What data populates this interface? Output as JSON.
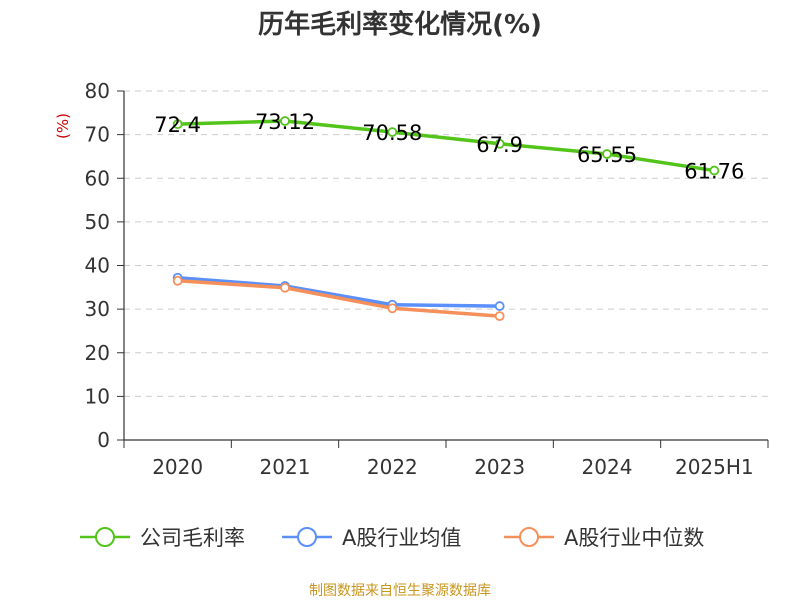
{
  "chart_data": {
    "type": "line",
    "title": "历年毛利率变化情况(%)",
    "ylabel": "(%)",
    "categories": [
      "2020",
      "2021",
      "2022",
      "2023",
      "2024",
      "2025H1"
    ],
    "ylim": [
      0,
      80
    ],
    "yticks": [
      0,
      10,
      20,
      30,
      40,
      50,
      60,
      70,
      80
    ],
    "grid": true,
    "legend_position": "bottom",
    "series": [
      {
        "name": "公司毛利率",
        "color": "#52c41a",
        "values": [
          72.4,
          73.12,
          70.58,
          67.9,
          65.55,
          61.76
        ],
        "labels": [
          "72.4",
          "73.12",
          "70.58",
          "67.9",
          "65.55",
          "61.76"
        ]
      },
      {
        "name": "A股行业均值",
        "color": "#5b8ff9",
        "values": [
          37.2,
          35.3,
          31.0,
          30.7,
          null,
          null
        ]
      },
      {
        "name": "A股行业中位数",
        "color": "#f6905a",
        "values": [
          36.5,
          34.9,
          30.2,
          28.4,
          null,
          null
        ]
      }
    ],
    "source": "制图数据来自恒生聚源数据库"
  }
}
